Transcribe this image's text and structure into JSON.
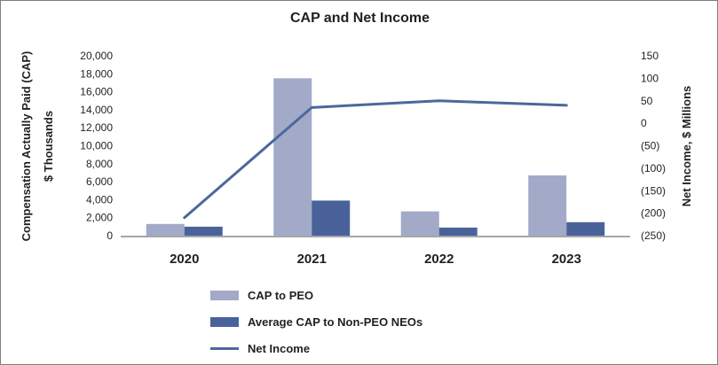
{
  "chart_data": {
    "type": "combo-bar-line",
    "title": "CAP and Net Income",
    "categories": [
      "2020",
      "2021",
      "2022",
      "2023"
    ],
    "series": [
      {
        "name": "CAP to PEO",
        "kind": "bar",
        "axis": "left",
        "color": "#a2aac8",
        "values": [
          1300,
          17500,
          2700,
          6700
        ]
      },
      {
        "name": "Average CAP to Non-PEO NEOs",
        "kind": "bar",
        "axis": "left",
        "color": "#49639a",
        "values": [
          1000,
          3900,
          900,
          1500
        ]
      },
      {
        "name": "Net Income",
        "kind": "line",
        "axis": "right",
        "color": "#4a699c",
        "values": [
          -210,
          35,
          50,
          40
        ]
      }
    ],
    "left_axis": {
      "label_line1": "Compensation Actually Paid (CAP)",
      "label_line2": "$ Thousands",
      "min": 0,
      "max": 20000,
      "step": 2000,
      "tick_labels": [
        "20,000",
        "18,000",
        "16,000",
        "14,000",
        "12,000",
        "10,000",
        "8,000",
        "6,000",
        "4,000",
        "2,000",
        "0"
      ]
    },
    "right_axis": {
      "label": "Net Income, $ Millions",
      "min": -250,
      "max": 150,
      "step": 50,
      "tick_labels": [
        "150",
        "100",
        "50",
        "0",
        "(50)",
        "(100)",
        "(150)",
        "(200)",
        "(250)"
      ]
    },
    "legend": [
      {
        "label": "CAP to PEO",
        "swatch": "bar",
        "color": "#a2aac8"
      },
      {
        "label": "Average CAP to Non-PEO NEOs",
        "swatch": "bar",
        "color": "#49639a"
      },
      {
        "label": "Net Income",
        "swatch": "line",
        "color": "#4a699c"
      }
    ],
    "grid": false,
    "legend_position": "bottom",
    "colors": {
      "axis_line": "#a6a6a6",
      "text": "#231f20",
      "background": "#ffffff",
      "border": "#7f7f7f"
    }
  }
}
